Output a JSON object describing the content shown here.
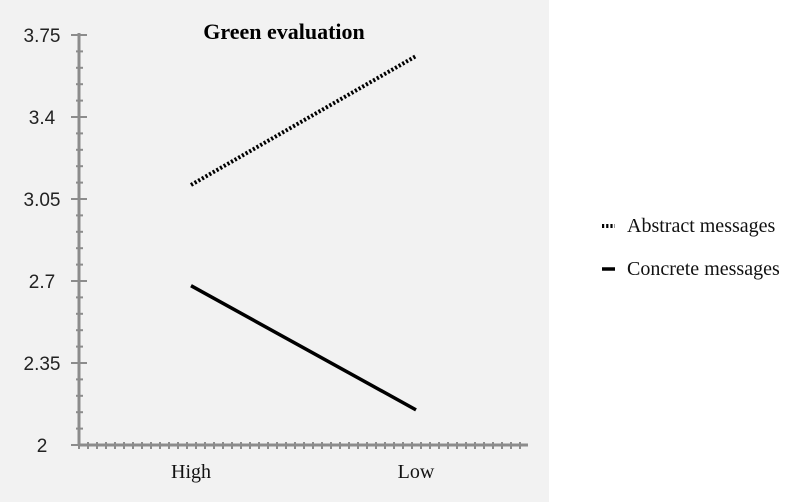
{
  "chart_data": {
    "type": "line",
    "title": "Green evaluation",
    "categories": [
      "High",
      "Low"
    ],
    "series": [
      {
        "name": "Abstract messages",
        "values": [
          3.11,
          3.66
        ],
        "style": "dotted",
        "color": "#000000"
      },
      {
        "name": "Concrete messages",
        "values": [
          2.68,
          2.15
        ],
        "style": "solid",
        "color": "#000000"
      }
    ],
    "ylim": [
      2,
      3.75
    ],
    "yticks": [
      "2",
      "2.35",
      "2.7",
      "3.05",
      "3.4",
      "3.75"
    ],
    "ytick_values": [
      2,
      2.35,
      2.7,
      3.05,
      3.4,
      3.75
    ],
    "xlabel": "",
    "ylabel": "",
    "grid": false,
    "legend_position": "right"
  },
  "colors": {
    "plot_background": "#f2f2f2",
    "axis": "#8c8c8c"
  }
}
